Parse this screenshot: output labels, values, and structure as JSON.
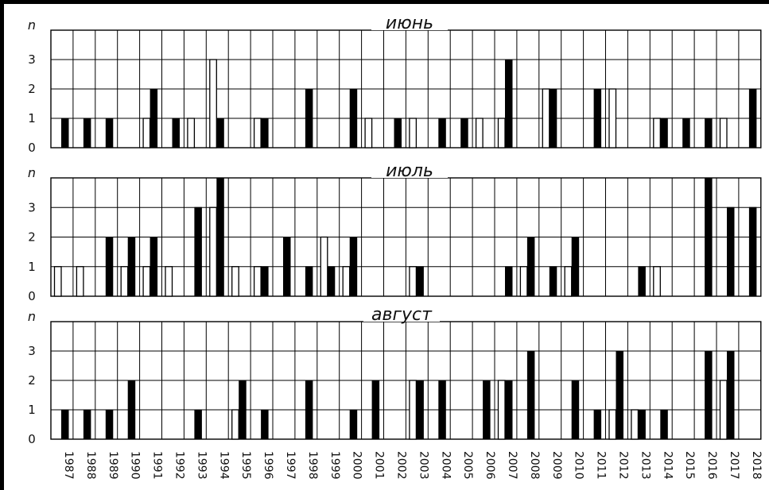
{
  "chart_data": [
    {
      "type": "bar",
      "title": "июнь",
      "ylabel": "n",
      "ylim": [
        0,
        4
      ],
      "yticks": [
        0,
        1,
        2,
        3
      ],
      "categories": [
        "1987",
        "1988",
        "1989",
        "1990",
        "1991",
        "1992",
        "1993",
        "1994",
        "1995",
        "1996",
        "1997",
        "1998",
        "1999",
        "2000",
        "2001",
        "2002",
        "2003",
        "2004",
        "2005",
        "2006",
        "2007",
        "2008",
        "2009",
        "2010",
        "2011",
        "2012",
        "2013",
        "2014",
        "2015",
        "2016",
        "2017",
        "2018"
      ],
      "series": [
        {
          "color": "#ffffff",
          "values": [
            0,
            0,
            0,
            0,
            1,
            0,
            1,
            3,
            0,
            1,
            0,
            0,
            0,
            0,
            1,
            0,
            1,
            0,
            0,
            1,
            1,
            0,
            2,
            0,
            0,
            2,
            0,
            1,
            0,
            0,
            1,
            0
          ]
        },
        {
          "color": "#000000",
          "values": [
            1,
            1,
            1,
            0,
            2,
            1,
            0,
            1,
            0,
            1,
            0,
            2,
            0,
            2,
            0,
            1,
            0,
            1,
            1,
            0,
            3,
            0,
            2,
            0,
            2,
            0,
            0,
            1,
            1,
            1,
            0,
            2
          ]
        }
      ]
    },
    {
      "type": "bar",
      "title": "июль",
      "ylabel": "n",
      "ylim": [
        0,
        4
      ],
      "yticks": [
        0,
        1,
        2,
        3
      ],
      "categories": [
        "1987",
        "1988",
        "1989",
        "1990",
        "1991",
        "1992",
        "1993",
        "1994",
        "1995",
        "1996",
        "1997",
        "1998",
        "1999",
        "2000",
        "2001",
        "2002",
        "2003",
        "2004",
        "2005",
        "2006",
        "2007",
        "2008",
        "2009",
        "2010",
        "2011",
        "2012",
        "2013",
        "2014",
        "2015",
        "2016",
        "2017",
        "2018"
      ],
      "series": [
        {
          "color": "#ffffff",
          "values": [
            1,
            1,
            0,
            1,
            1,
            1,
            0,
            3,
            1,
            1,
            0,
            0,
            2,
            1,
            0,
            0,
            1,
            0,
            0,
            0,
            0,
            1,
            0,
            1,
            0,
            0,
            0,
            1,
            0,
            0,
            0,
            0
          ]
        },
        {
          "color": "#000000",
          "values": [
            0,
            0,
            2,
            2,
            2,
            0,
            3,
            4,
            0,
            1,
            2,
            1,
            1,
            2,
            0,
            0,
            1,
            0,
            0,
            0,
            1,
            2,
            1,
            2,
            0,
            0,
            1,
            0,
            0,
            4,
            3,
            3
          ]
        }
      ]
    },
    {
      "type": "bar",
      "title": "август",
      "ylabel": "n",
      "ylim": [
        0,
        4
      ],
      "yticks": [
        0,
        1,
        2,
        3
      ],
      "categories": [
        "1987",
        "1988",
        "1989",
        "1990",
        "1991",
        "1992",
        "1993",
        "1994",
        "1995",
        "1996",
        "1997",
        "1998",
        "1999",
        "2000",
        "2001",
        "2002",
        "2003",
        "2004",
        "2005",
        "2006",
        "2007",
        "2008",
        "2009",
        "2010",
        "2011",
        "2012",
        "2013",
        "2014",
        "2015",
        "2016",
        "2017",
        "2018"
      ],
      "series": [
        {
          "color": "#ffffff",
          "values": [
            0,
            0,
            0,
            0,
            0,
            0,
            0,
            0,
            1,
            0,
            0,
            0,
            0,
            0,
            0,
            0,
            2,
            0,
            0,
            0,
            2,
            0,
            0,
            0,
            0,
            1,
            1,
            0,
            0,
            0,
            2,
            0
          ]
        },
        {
          "color": "#000000",
          "values": [
            1,
            1,
            1,
            2,
            0,
            0,
            1,
            0,
            2,
            1,
            0,
            2,
            0,
            1,
            2,
            0,
            2,
            2,
            0,
            2,
            2,
            3,
            0,
            2,
            1,
            3,
            1,
            1,
            0,
            3,
            3,
            0
          ]
        }
      ]
    }
  ]
}
